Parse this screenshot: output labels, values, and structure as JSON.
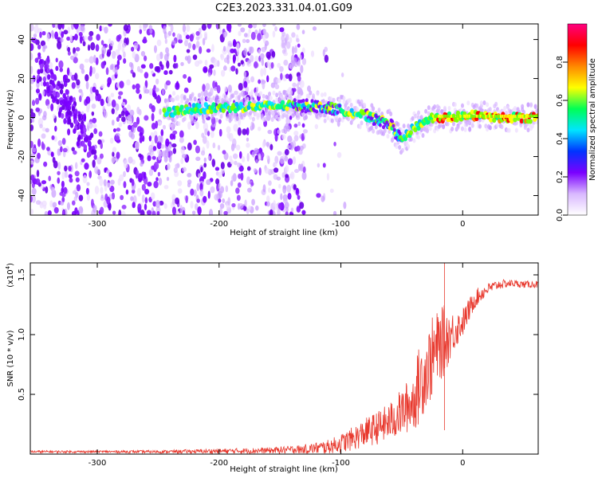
{
  "title": "C2E3.2023.331.04.01.G09",
  "chart_data": [
    {
      "type": "heatmap",
      "xlabel": "Height of straight line (km)",
      "ylabel": "Frequency (Hz)",
      "xlim": [
        -355,
        62
      ],
      "ylim": [
        -50,
        48
      ],
      "x_ticks": [
        -300,
        -200,
        -100,
        0
      ],
      "y_ticks": [
        -40,
        -20,
        0,
        20,
        40
      ],
      "colorbar": {
        "label": "Normalized spectral amplitude",
        "range": [
          0.0,
          1.0
        ],
        "ticks": [
          "0.0",
          "0.2",
          "0.4",
          "0.6",
          "0.8"
        ],
        "tick_values": [
          0.0,
          0.2,
          0.4,
          0.6,
          0.8
        ],
        "colors": [
          "#ffffff",
          "#d9b8ff",
          "#7a00ff",
          "#0033ff",
          "#00e5ff",
          "#00ff55",
          "#ffff00",
          "#ff8800",
          "#ff0000",
          "#ff0080"
        ]
      },
      "ridge": [
        {
          "x": -245,
          "y": 2
        },
        {
          "x": -230,
          "y": 4
        },
        {
          "x": -200,
          "y": 5
        },
        {
          "x": -150,
          "y": 6
        },
        {
          "x": -120,
          "y": 6
        },
        {
          "x": -100,
          "y": 4
        },
        {
          "x": -80,
          "y": 1
        },
        {
          "x": -60,
          "y": -3
        },
        {
          "x": -50,
          "y": -12
        },
        {
          "x": -40,
          "y": -5
        },
        {
          "x": -25,
          "y": 0
        },
        {
          "x": -10,
          "y": 0
        },
        {
          "x": 10,
          "y": 1
        },
        {
          "x": 30,
          "y": 0
        },
        {
          "x": 60,
          "y": 0
        }
      ]
    },
    {
      "type": "line",
      "xlabel": "Height of straight line (km)",
      "ylabel": "SNR (10 * v/v)",
      "y_multiplier": "(x10",
      "y_multiplier_exp": "4",
      "y_multiplier_close": ")",
      "xlim": [
        -355,
        62
      ],
      "ylim": [
        0,
        1.6
      ],
      "x_ticks": [
        -300,
        -200,
        -100,
        0
      ],
      "y_ticks": [
        0.5,
        1.0,
        1.5
      ],
      "y_tick_labels": [
        "0.5",
        "1.0",
        "1.5"
      ],
      "series": [
        {
          "color": "#e8392e",
          "x": [
            -355,
            -300,
            -250,
            -200,
            -160,
            -130,
            -110,
            -100,
            -90,
            -80,
            -70,
            -60,
            -50,
            -40,
            -35,
            -30,
            -25,
            -20,
            -15,
            -10,
            -5,
            0,
            5,
            10,
            20,
            30,
            40,
            50,
            62
          ],
          "y": [
            0.02,
            0.02,
            0.02,
            0.025,
            0.03,
            0.04,
            0.06,
            0.09,
            0.13,
            0.18,
            0.22,
            0.27,
            0.35,
            0.45,
            0.6,
            0.7,
            0.8,
            0.9,
            0.95,
            1.0,
            1.05,
            1.1,
            1.2,
            1.3,
            1.38,
            1.42,
            1.43,
            1.42,
            1.42
          ],
          "spread": [
            0.01,
            0.01,
            0.012,
            0.02,
            0.025,
            0.04,
            0.06,
            0.08,
            0.1,
            0.12,
            0.14,
            0.16,
            0.2,
            0.25,
            0.35,
            0.3,
            0.35,
            0.3,
            0.3,
            0.2,
            0.15,
            0.12,
            0.1,
            0.08,
            0.05,
            0.04,
            0.03,
            0.03,
            0.03
          ]
        }
      ]
    }
  ]
}
